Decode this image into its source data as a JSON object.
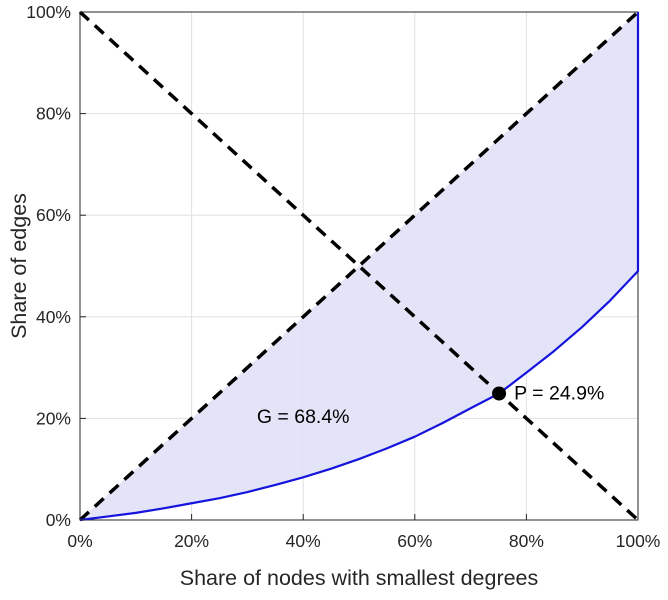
{
  "chart_data": {
    "type": "line",
    "title": "",
    "xlabel": "Share of nodes with smallest degrees",
    "ylabel": "Share of edges",
    "xlim": [
      0,
      100
    ],
    "ylim": [
      0,
      100
    ],
    "grid": true,
    "legend": "none",
    "x_tick_values": [
      0,
      20,
      40,
      60,
      80,
      100
    ],
    "x_tick_labels": [
      "0%",
      "20%",
      "40%",
      "60%",
      "80%",
      "100%"
    ],
    "y_tick_values": [
      0,
      20,
      40,
      60,
      80,
      100
    ],
    "y_tick_labels": [
      "0%",
      "20%",
      "40%",
      "60%",
      "80%",
      "100%"
    ],
    "colors": {
      "background": "#ffffff",
      "grid": "#e0e0e0",
      "axis": "#262626",
      "curve": "#1414dd",
      "dashed": "#000000",
      "fill": "#e1e1f7"
    },
    "series": [
      {
        "name": "lorenz-curve",
        "style": "solid",
        "color": "#1414dd",
        "width": 2.2,
        "x": [
          0,
          5,
          10,
          15,
          20,
          25,
          30,
          35,
          40,
          45,
          50,
          55,
          60,
          65,
          70,
          75.1,
          80,
          85,
          90,
          95,
          100,
          100
        ],
        "y": [
          0,
          0.7,
          1.4,
          2.3,
          3.3,
          4.3,
          5.5,
          6.9,
          8.4,
          10.1,
          12.0,
          14.1,
          16.4,
          19.1,
          22.0,
          24.9,
          29.0,
          33.3,
          38.0,
          43.2,
          49.0,
          100
        ]
      },
      {
        "name": "equality-diagonal",
        "style": "dashed",
        "color": "#000000",
        "width": 3.5,
        "x": [
          0,
          100
        ],
        "y": [
          0,
          100
        ]
      },
      {
        "name": "anti-diagonal",
        "style": "dashed",
        "color": "#000000",
        "width": 3.5,
        "x": [
          0,
          100
        ],
        "y": [
          100,
          0
        ]
      }
    ],
    "fill_between": {
      "upper": "equality-diagonal",
      "lower": "lorenz-curve",
      "color": "#e1e1f7",
      "opacity": 0.9
    },
    "marker": {
      "x": 75.1,
      "y": 24.9,
      "radius": 7,
      "color": "#000000"
    },
    "annotations": [
      {
        "id": "gini",
        "text": "G = 68.4%",
        "x": 40,
        "y": 20.3,
        "anchor": "middle",
        "vcenter": true
      },
      {
        "id": "p",
        "text": "P = 24.9%",
        "x": 77.8,
        "y": 24.9,
        "anchor": "start",
        "vcenter": true
      }
    ]
  }
}
